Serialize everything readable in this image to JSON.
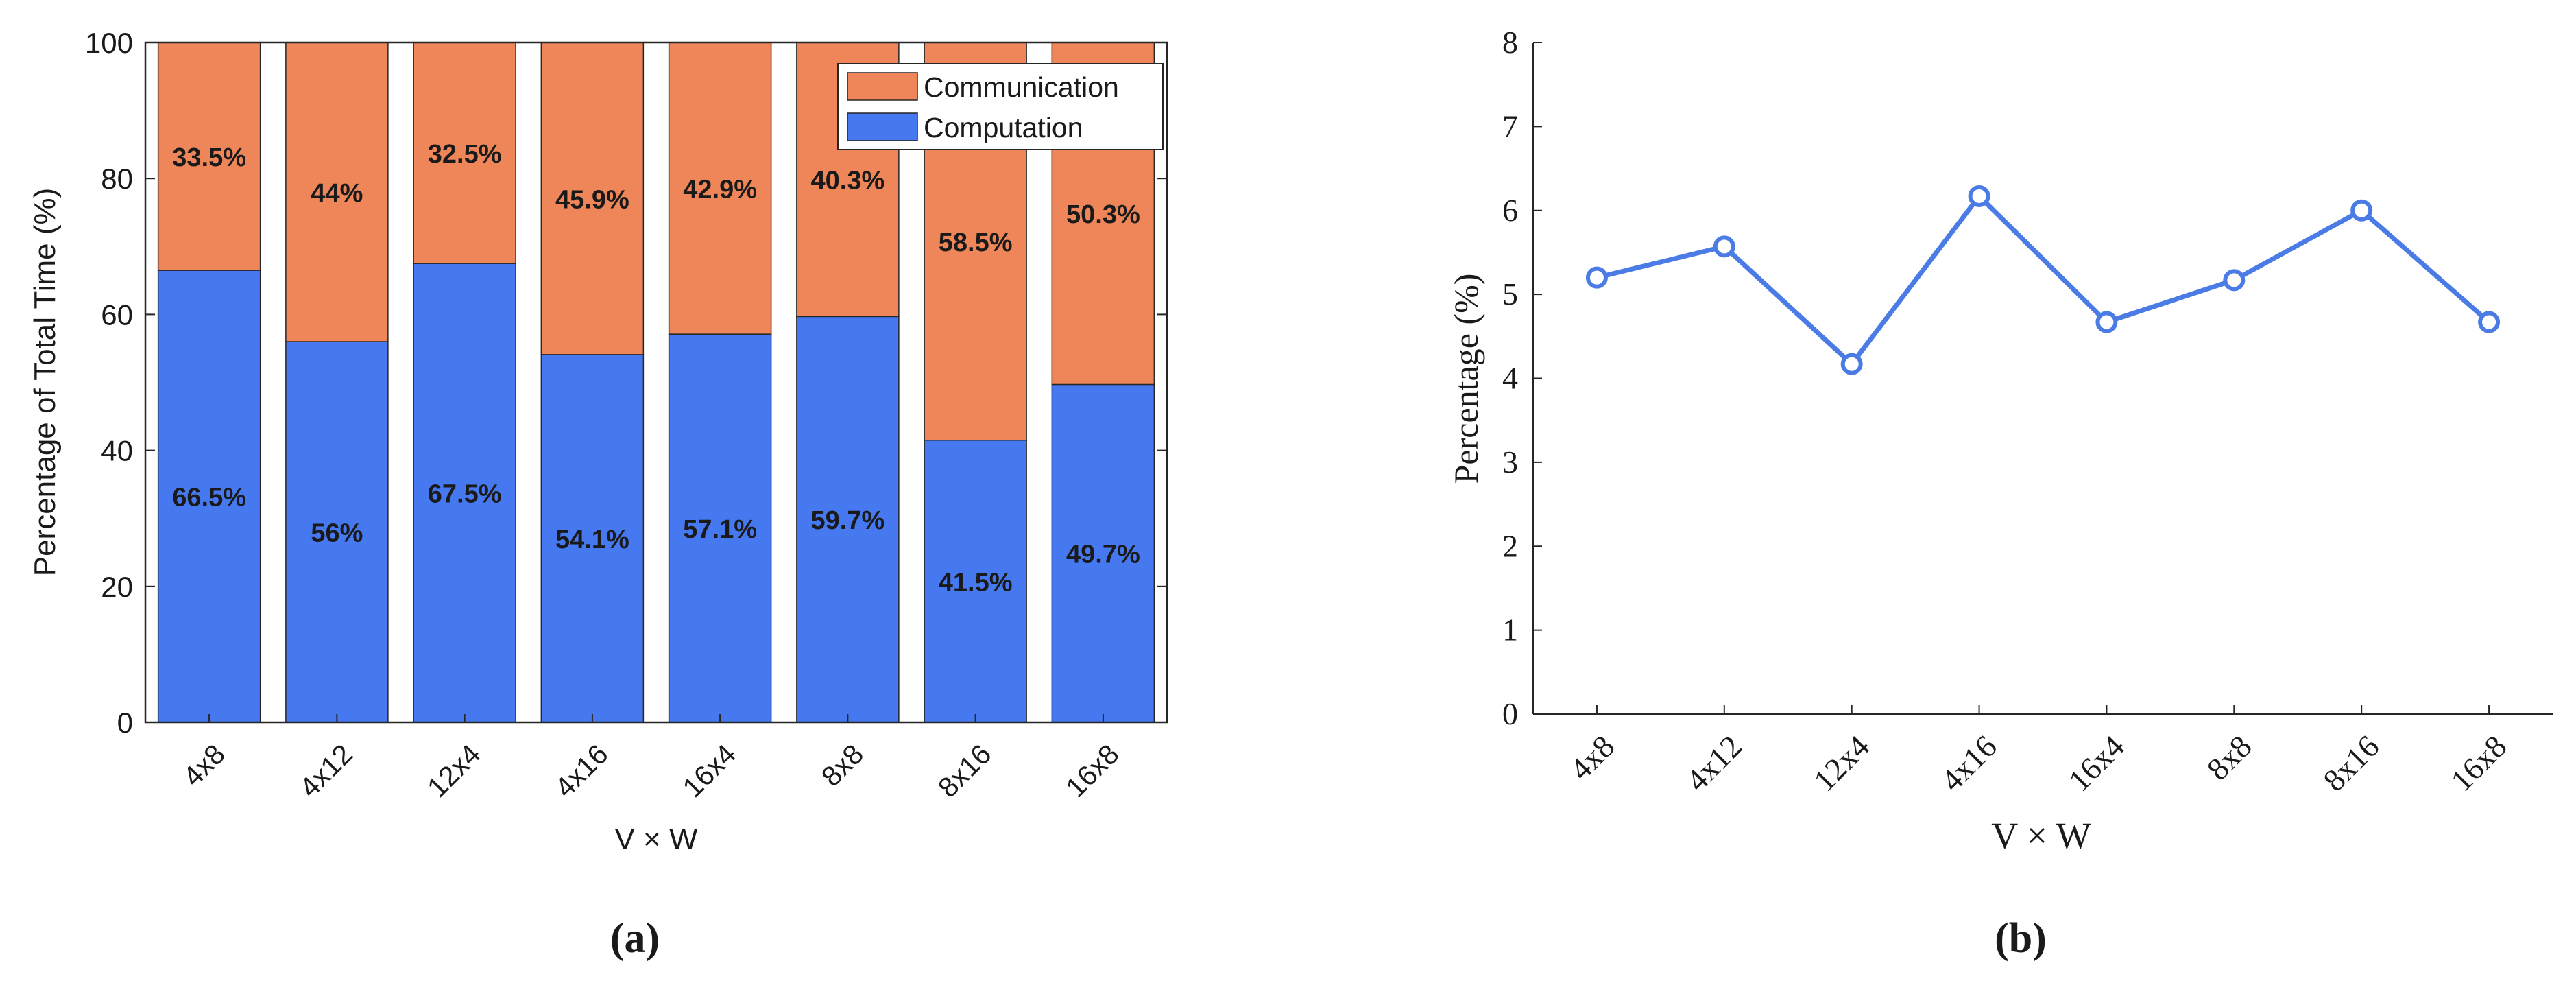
{
  "colors": {
    "communication": "#EE8659",
    "computation": "#4678EF",
    "line": "#4B7BE5",
    "axis": "#262626"
  },
  "chart_data": [
    {
      "type": "bar",
      "stacked": true,
      "panel_label": "(a)",
      "categories": [
        "4x8",
        "4x12",
        "12x4",
        "4x16",
        "16x4",
        "8x8",
        "8x16",
        "16x8"
      ],
      "series": [
        {
          "name": "Computation",
          "values": [
            66.5,
            56,
            67.5,
            54.1,
            57.1,
            59.7,
            41.5,
            49.7
          ],
          "labels": [
            "66.5%",
            "56%",
            "67.5%",
            "54.1%",
            "57.1%",
            "59.7%",
            "41.5%",
            "49.7%"
          ]
        },
        {
          "name": "Communication",
          "values": [
            33.5,
            44,
            32.5,
            45.9,
            42.9,
            40.3,
            58.5,
            50.3
          ],
          "labels": [
            "33.5%",
            "44%",
            "32.5%",
            "45.9%",
            "42.9%",
            "40.3%",
            "58.5%",
            "50.3%"
          ]
        }
      ],
      "legend": [
        "Communication",
        "Computation"
      ],
      "legend_position": "top-right",
      "xlabel": "V × W",
      "ylabel": "Percentage of Total Time (%)",
      "ylim": [
        0,
        100
      ],
      "yticks": [
        0,
        20,
        40,
        60,
        80,
        100
      ],
      "grid": false
    },
    {
      "type": "line",
      "panel_label": "(b)",
      "categories": [
        "4x8",
        "4x12",
        "12x4",
        "4x16",
        "16x4",
        "8x8",
        "8x16",
        "16x8"
      ],
      "values": [
        5.2,
        5.57,
        4.17,
        6.17,
        4.67,
        5.17,
        6.0,
        4.67
      ],
      "marker": "circle",
      "xlabel": "V × W",
      "ylabel": "Percentage (%)",
      "ylim": [
        0,
        8
      ],
      "yticks": [
        0,
        1,
        2,
        3,
        4,
        5,
        6,
        7,
        8
      ],
      "grid": false
    }
  ]
}
